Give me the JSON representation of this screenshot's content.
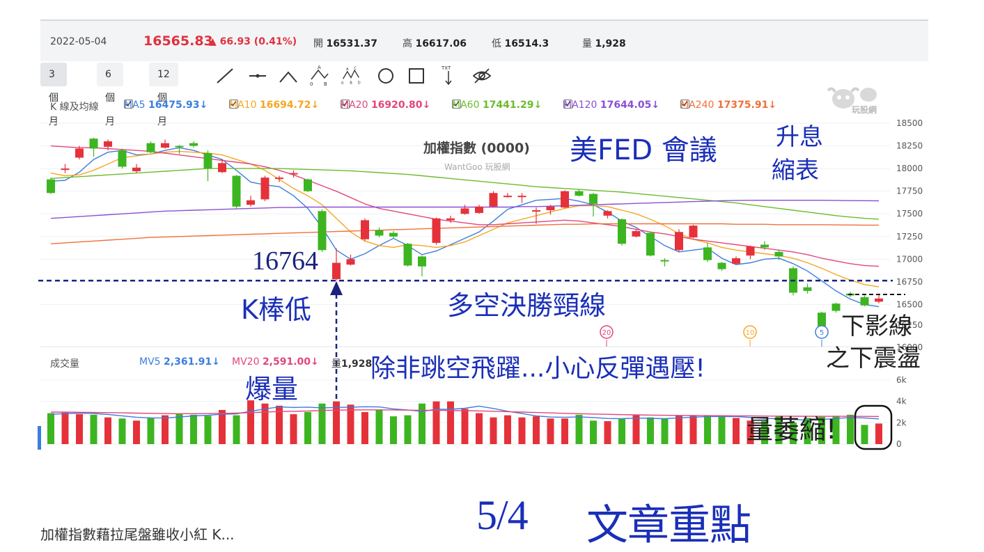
{
  "quote": {
    "date": "2022-05-04",
    "price": "16565.83",
    "change": "▲ 66.93 (0.41%)",
    "open_label": "開",
    "open": "16531.37",
    "high_label": "高",
    "high": "16617.06",
    "low_label": "低",
    "low": "16514.3",
    "vol_label": "量",
    "volume": "1,928"
  },
  "periods": [
    "3 個月",
    "6 個月",
    "12 個月"
  ],
  "tools": [
    "line-tool-icon",
    "horizontal-line-tool-icon",
    "wedge-tool-icon",
    "abc-pattern-icon",
    "abcd-pattern-icon",
    "circle-tool-icon",
    "rectangle-tool-icon",
    "text-tool-icon",
    "hide-eye-icon"
  ],
  "tool_glyphs": {
    "abc": [
      "0",
      "A",
      "B"
    ],
    "abcd": [
      "0",
      "A",
      "B",
      "C",
      "D"
    ],
    "txt": "TXT"
  },
  "legend": {
    "title": "K 線及均線",
    "ma": [
      {
        "name": "MA5",
        "value": "16475.93↓",
        "color": "#3b7ddd"
      },
      {
        "name": "MA10",
        "value": "16694.72↓",
        "color": "#f5a623"
      },
      {
        "name": "MA20",
        "value": "16920.80↓",
        "color": "#e2467a"
      },
      {
        "name": "MA60",
        "value": "17441.29↓",
        "color": "#6cbb2a"
      },
      {
        "name": "MA120",
        "value": "17644.05↓",
        "color": "#8a4fd6"
      },
      {
        "name": "MA240",
        "value": "17375.91↓",
        "color": "#f0703a"
      }
    ]
  },
  "vol_legend": {
    "title": "成交量",
    "mv5_label": "MV5",
    "mv5": "2,361.91↓",
    "mv20_label": "MV20",
    "mv20": "2,591.00↓",
    "amount_label": "量",
    "amount": "1,928"
  },
  "watermark": {
    "logo": "WantGoo",
    "site": "玩股網",
    "chart_title": "加權指數 (0000)",
    "chart_sub": "WantGoo 玩股網"
  },
  "annotations": {
    "fed": "美FED 會議",
    "hike1": "升息",
    "hike2": "縮表",
    "level": "16764",
    "klow": "K棒低",
    "neckline": "多空決勝頸線",
    "warning": "除非跳空飛躍...小心反彈遇壓!",
    "volume_burst": "爆量",
    "shadow1": "下影線",
    "shadow2": "之下震盪",
    "shrink": "量萎縮!"
  },
  "markers": [
    "20",
    "10",
    "5"
  ],
  "footer": {
    "headline": "加權指數藉拉尾盤雖收小紅 K...",
    "date": "5/4",
    "title": "文章重點"
  },
  "colors": {
    "up": "#e5323a",
    "down": "#3cb521",
    "annotation": "#1a2fb8",
    "dash": "#1a237e"
  },
  "chart_data": {
    "type": "candlestick",
    "price_axis": {
      "ticks": [
        16500,
        16750,
        17000,
        17250,
        17500,
        17750,
        18000,
        18250,
        18500
      ],
      "partial_ticks": [
        "16250",
        "16000"
      ],
      "range": [
        16250,
        18500
      ]
    },
    "volume_axis": {
      "ticks": [
        "0",
        "2k",
        "4k",
        "6k"
      ],
      "range": [
        0,
        6000
      ]
    },
    "neckline": 16764,
    "candles": [
      {
        "o": 17880,
        "c": 17730,
        "h": 17900,
        "l": 17720
      },
      {
        "o": 17990,
        "c": 18000,
        "h": 18050,
        "l": 17950
      },
      {
        "o": 18120,
        "c": 18220,
        "h": 18250,
        "l": 18100
      },
      {
        "o": 18330,
        "c": 18220,
        "h": 18340,
        "l": 18130
      },
      {
        "o": 18240,
        "c": 18300,
        "h": 18320,
        "l": 18200
      },
      {
        "o": 18200,
        "c": 18020,
        "h": 18220,
        "l": 18000
      },
      {
        "o": 17970,
        "c": 18010,
        "h": 18050,
        "l": 17950
      },
      {
        "o": 18280,
        "c": 18180,
        "h": 18300,
        "l": 18170
      },
      {
        "o": 18230,
        "c": 18280,
        "h": 18320,
        "l": 18220
      },
      {
        "o": 18250,
        "c": 18240,
        "h": 18260,
        "l": 18160
      },
      {
        "o": 18280,
        "c": 18250,
        "h": 18300,
        "l": 18230
      },
      {
        "o": 18170,
        "c": 18000,
        "h": 18200,
        "l": 17860
      },
      {
        "o": 17960,
        "c": 18060,
        "h": 18100,
        "l": 17950
      },
      {
        "o": 17920,
        "c": 17580,
        "h": 17930,
        "l": 17550
      },
      {
        "o": 17600,
        "c": 17650,
        "h": 17700,
        "l": 17580
      },
      {
        "o": 17660,
        "c": 17900,
        "h": 17920,
        "l": 17640
      },
      {
        "o": 17890,
        "c": 17900,
        "h": 17920,
        "l": 17850
      },
      {
        "o": 17940,
        "c": 17950,
        "h": 17980,
        "l": 17900
      },
      {
        "o": 17880,
        "c": 17750,
        "h": 17890,
        "l": 17740
      },
      {
        "o": 17530,
        "c": 17100,
        "h": 17550,
        "l": 17080
      },
      {
        "o": 16780,
        "c": 16960,
        "h": 17120,
        "l": 16764
      },
      {
        "o": 16940,
        "c": 17000,
        "h": 17050,
        "l": 16930
      },
      {
        "o": 17220,
        "c": 17430,
        "h": 17450,
        "l": 17200
      },
      {
        "o": 17320,
        "c": 17260,
        "h": 17350,
        "l": 17240
      },
      {
        "o": 17290,
        "c": 17250,
        "h": 17310,
        "l": 17230
      },
      {
        "o": 17170,
        "c": 16930,
        "h": 17180,
        "l": 16920
      },
      {
        "o": 17030,
        "c": 16920,
        "h": 17040,
        "l": 16810
      },
      {
        "o": 17180,
        "c": 17450,
        "h": 17460,
        "l": 17160
      },
      {
        "o": 17430,
        "c": 17450,
        "h": 17480,
        "l": 17400
      },
      {
        "o": 17500,
        "c": 17560,
        "h": 17600,
        "l": 17490
      },
      {
        "o": 17510,
        "c": 17580,
        "h": 17600,
        "l": 17500
      },
      {
        "o": 17580,
        "c": 17730,
        "h": 17750,
        "l": 17570
      },
      {
        "o": 17700,
        "c": 17700,
        "h": 17730,
        "l": 17680
      },
      {
        "o": 17690,
        "c": 17700,
        "h": 17730,
        "l": 17620
      },
      {
        "o": 17530,
        "c": 17540,
        "h": 17570,
        "l": 17390
      },
      {
        "o": 17540,
        "c": 17580,
        "h": 17600,
        "l": 17490
      },
      {
        "o": 17570,
        "c": 17750,
        "h": 17760,
        "l": 17560
      },
      {
        "o": 17750,
        "c": 17700,
        "h": 17770,
        "l": 17690
      },
      {
        "o": 17720,
        "c": 17610,
        "h": 17730,
        "l": 17470
      },
      {
        "o": 17480,
        "c": 17530,
        "h": 17540,
        "l": 17450
      },
      {
        "o": 17440,
        "c": 17170,
        "h": 17450,
        "l": 17150
      },
      {
        "o": 17250,
        "c": 17310,
        "h": 17330,
        "l": 17240
      },
      {
        "o": 17290,
        "c": 17040,
        "h": 17300,
        "l": 17030
      },
      {
        "o": 16990,
        "c": 16980,
        "h": 17010,
        "l": 16920
      },
      {
        "o": 17100,
        "c": 17300,
        "h": 17330,
        "l": 17080
      },
      {
        "o": 17240,
        "c": 17370,
        "h": 17380,
        "l": 17230
      },
      {
        "o": 17130,
        "c": 16990,
        "h": 17180,
        "l": 16970
      },
      {
        "o": 16960,
        "c": 16890,
        "h": 16970,
        "l": 16870
      },
      {
        "o": 16950,
        "c": 17010,
        "h": 17030,
        "l": 16940
      },
      {
        "o": 17040,
        "c": 17140,
        "h": 17150,
        "l": 17000
      },
      {
        "o": 17160,
        "c": 17130,
        "h": 17200,
        "l": 17100
      },
      {
        "o": 17080,
        "c": 17030,
        "h": 17100,
        "l": 16990
      },
      {
        "o": 16900,
        "c": 16630,
        "h": 16920,
        "l": 16600
      },
      {
        "o": 16690,
        "c": 16650,
        "h": 16730,
        "l": 16620
      },
      {
        "o": 16410,
        "c": 16260,
        "h": 16420,
        "l": 16250
      },
      {
        "o": 16510,
        "c": 16430,
        "h": 16520,
        "l": 16410
      },
      {
        "o": 16620,
        "c": 16600,
        "h": 16640,
        "l": 16580
      },
      {
        "o": 16580,
        "c": 16490,
        "h": 16600,
        "l": 16480
      },
      {
        "o": 16531,
        "c": 16566,
        "h": 16617,
        "l": 16514
      }
    ],
    "ma_lines": {
      "MA5": [
        17860,
        17870,
        17960,
        18100,
        18180,
        18200,
        18150,
        18160,
        18200,
        18230,
        18200,
        18150,
        18100,
        17980,
        17850,
        17820,
        17800,
        17700,
        17560,
        17350,
        17100,
        17000,
        17060,
        17150,
        17230,
        17150,
        17050,
        17090,
        17160,
        17230,
        17300,
        17420,
        17550,
        17600,
        17650,
        17660,
        17670,
        17640,
        17600,
        17520,
        17420,
        17350,
        17250,
        17150,
        17080,
        17100,
        17120,
        17010,
        16940,
        16960,
        17000,
        17010,
        16950,
        16870,
        16760,
        16650,
        16560,
        16500,
        16476
      ],
      "MA10": [
        17950,
        17920,
        17930,
        17980,
        18050,
        18120,
        18140,
        18160,
        18180,
        18190,
        18180,
        18170,
        18150,
        18100,
        18050,
        17980,
        17880,
        17780,
        17700,
        17600,
        17450,
        17300,
        17200,
        17150,
        17130,
        17160,
        17150,
        17130,
        17150,
        17190,
        17260,
        17330,
        17400,
        17440,
        17480,
        17520,
        17560,
        17590,
        17590,
        17580,
        17540,
        17500,
        17440,
        17370,
        17280,
        17220,
        17180,
        17130,
        17100,
        17080,
        17060,
        17040,
        17010,
        16960,
        16900,
        16830,
        16770,
        16720,
        16695
      ],
      "MA20": [
        18250,
        18240,
        18230,
        18230,
        18220,
        18210,
        18200,
        18190,
        18170,
        18150,
        18130,
        18110,
        18090,
        18070,
        18050,
        18020,
        17980,
        17930,
        17870,
        17810,
        17750,
        17680,
        17610,
        17560,
        17530,
        17500,
        17470,
        17440,
        17420,
        17400,
        17380,
        17380,
        17390,
        17400,
        17410,
        17420,
        17430,
        17420,
        17400,
        17380,
        17360,
        17330,
        17300,
        17280,
        17250,
        17220,
        17200,
        17180,
        17160,
        17140,
        17120,
        17100,
        17080,
        17050,
        17010,
        16980,
        16950,
        16930,
        16921
      ],
      "MA60": [
        17890,
        17900,
        17910,
        17920,
        17930,
        17940,
        17950,
        17960,
        17970,
        17980,
        17990,
        18000,
        18000,
        18000,
        18000,
        18000,
        18000,
        17995,
        17990,
        17985,
        17980,
        17975,
        17965,
        17955,
        17945,
        17935,
        17920,
        17905,
        17890,
        17875,
        17860,
        17845,
        17830,
        17815,
        17800,
        17790,
        17780,
        17770,
        17760,
        17750,
        17740,
        17725,
        17710,
        17695,
        17680,
        17665,
        17650,
        17635,
        17620,
        17600,
        17580,
        17560,
        17540,
        17520,
        17500,
        17480,
        17465,
        17450,
        17441
      ],
      "MA120": [
        17450,
        17460,
        17470,
        17480,
        17490,
        17500,
        17510,
        17520,
        17530,
        17535,
        17540,
        17545,
        17550,
        17555,
        17560,
        17565,
        17570,
        17570,
        17575,
        17575,
        17575,
        17575,
        17575,
        17575,
        17575,
        17575,
        17575,
        17575,
        17575,
        17575,
        17575,
        17575,
        17575,
        17580,
        17580,
        17585,
        17590,
        17595,
        17600,
        17605,
        17610,
        17615,
        17620,
        17625,
        17630,
        17635,
        17640,
        17645,
        17648,
        17650,
        17650,
        17650,
        17650,
        17650,
        17650,
        17648,
        17646,
        17645,
        17644
      ],
      "MA240": [
        17170,
        17180,
        17190,
        17200,
        17210,
        17220,
        17230,
        17240,
        17245,
        17250,
        17255,
        17260,
        17265,
        17270,
        17275,
        17280,
        17285,
        17290,
        17295,
        17300,
        17305,
        17310,
        17315,
        17320,
        17325,
        17330,
        17335,
        17340,
        17345,
        17350,
        17355,
        17360,
        17365,
        17370,
        17375,
        17380,
        17385,
        17385,
        17390,
        17390,
        17390,
        17390,
        17390,
        17390,
        17390,
        17390,
        17390,
        17390,
        17385,
        17385,
        17385,
        17380,
        17380,
        17380,
        17380,
        17378,
        17377,
        17376,
        17376
      ]
    },
    "volumes": [
      2900,
      2950,
      2800,
      2750,
      2500,
      2400,
      2200,
      2450,
      2700,
      2850,
      2750,
      2650,
      3200,
      2700,
      4100,
      3800,
      3600,
      2800,
      3000,
      3800,
      4000,
      3700,
      3000,
      3200,
      2600,
      2700,
      3800,
      4000,
      4000,
      3300,
      2900,
      2500,
      2700,
      2500,
      2600,
      2400,
      2400,
      2750,
      2200,
      2150,
      2400,
      2700,
      2500,
      2350,
      2700,
      2650,
      2650,
      2550,
      2450,
      2200,
      2150,
      2600,
      2000,
      2450,
      2550,
      2650,
      2750,
      1800,
      1928
    ],
    "volume_ma": {
      "MV5": [
        2800,
        2850,
        2900,
        2870,
        2780,
        2650,
        2520,
        2460,
        2450,
        2540,
        2640,
        2700,
        2800,
        2840,
        3080,
        3300,
        3480,
        3440,
        3460,
        3400,
        3440,
        3460,
        3500,
        3480,
        3300,
        3200,
        3060,
        3260,
        3260,
        3360,
        3560,
        3340,
        3080,
        2860,
        2640,
        2540,
        2520,
        2550,
        2490,
        2400,
        2380,
        2440,
        2410,
        2380,
        2460,
        2520,
        2580,
        2580,
        2590,
        2490,
        2400,
        2380,
        2300,
        2250,
        2300,
        2400,
        2490,
        2450,
        2362
      ],
      "MV20": [
        3000,
        3000,
        2980,
        2970,
        2950,
        2930,
        2900,
        2880,
        2860,
        2850,
        2850,
        2860,
        2880,
        2900,
        2950,
        3000,
        3050,
        3080,
        3100,
        3150,
        3180,
        3200,
        3210,
        3210,
        3200,
        3180,
        3170,
        3160,
        3150,
        3130,
        3110,
        3080,
        3040,
        3000,
        2960,
        2920,
        2880,
        2850,
        2820,
        2790,
        2760,
        2740,
        2720,
        2700,
        2690,
        2680,
        2670,
        2660,
        2650,
        2640,
        2630,
        2620,
        2610,
        2610,
        2600,
        2600,
        2600,
        2595,
        2591
      ]
    }
  }
}
